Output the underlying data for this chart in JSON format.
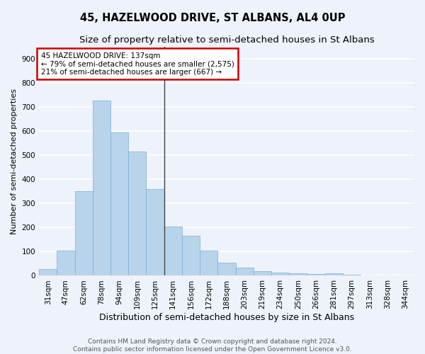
{
  "title": "45, HAZELWOOD DRIVE, ST ALBANS, AL4 0UP",
  "subtitle": "Size of property relative to semi-detached houses in St Albans",
  "xlabel": "Distribution of semi-detached houses by size in St Albans",
  "ylabel": "Number of semi-detached properties",
  "categories": [
    "31sqm",
    "47sqm",
    "62sqm",
    "78sqm",
    "94sqm",
    "109sqm",
    "125sqm",
    "141sqm",
    "156sqm",
    "172sqm",
    "188sqm",
    "203sqm",
    "219sqm",
    "234sqm",
    "250sqm",
    "266sqm",
    "281sqm",
    "297sqm",
    "313sqm",
    "328sqm",
    "344sqm"
  ],
  "values": [
    28,
    105,
    350,
    725,
    595,
    515,
    360,
    205,
    165,
    103,
    55,
    33,
    20,
    13,
    10,
    8,
    9,
    5,
    0,
    0,
    0
  ],
  "bar_color": "#b8d4ea",
  "bar_edge_color": "#7aafd4",
  "annotation_title": "45 HAZELWOOD DRIVE: 137sqm",
  "annotation_line1": "← 79% of semi-detached houses are smaller (2,575)",
  "annotation_line2": "21% of semi-detached houses are larger (667) →",
  "annotation_box_color": "#ffffff",
  "annotation_box_edge_color": "#cc0000",
  "vline_color": "#444444",
  "background_color": "#eef2fb",
  "plot_background": "#eef2fb",
  "grid_color": "#ffffff",
  "ylim": [
    0,
    950
  ],
  "yticks": [
    0,
    100,
    200,
    300,
    400,
    500,
    600,
    700,
    800,
    900
  ],
  "footer_line1": "Contains HM Land Registry data © Crown copyright and database right 2024.",
  "footer_line2": "Contains public sector information licensed under the Open Government Licence v3.0.",
  "title_fontsize": 10.5,
  "subtitle_fontsize": 9.5,
  "xlabel_fontsize": 9,
  "ylabel_fontsize": 8,
  "tick_fontsize": 7.5,
  "footer_fontsize": 6.5,
  "ann_fontsize": 7.5
}
